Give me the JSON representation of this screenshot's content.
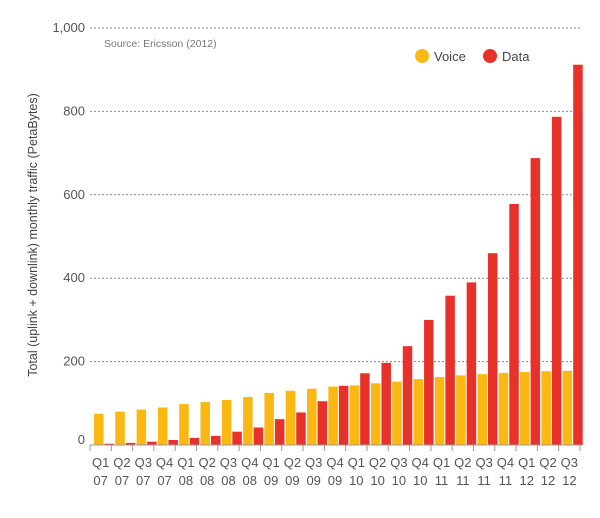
{
  "chart_data": {
    "type": "bar",
    "source": "Source: Ericsson (2012)",
    "ylabel": "Total (uplink + downlink) monthly traffic (PetaBytes)",
    "xlabel": "",
    "ylim": [
      0,
      1000
    ],
    "yticks": [
      "0",
      "200",
      "400",
      "600",
      "800",
      "1,000"
    ],
    "ytick_values": [
      0,
      200,
      400,
      600,
      800,
      1000
    ],
    "grid": "horizontal-dashed",
    "legend_position": "top-right",
    "categories": [
      [
        "Q1",
        "07"
      ],
      [
        "Q2",
        "07"
      ],
      [
        "Q3",
        "07"
      ],
      [
        "Q4",
        "07"
      ],
      [
        "Q1",
        "08"
      ],
      [
        "Q2",
        "08"
      ],
      [
        "Q3",
        "08"
      ],
      [
        "Q4",
        "08"
      ],
      [
        "Q1",
        "09"
      ],
      [
        "Q2",
        "09"
      ],
      [
        "Q3",
        "09"
      ],
      [
        "Q4",
        "09"
      ],
      [
        "Q1",
        "10"
      ],
      [
        "Q2",
        "10"
      ],
      [
        "Q3",
        "10"
      ],
      [
        "Q4",
        "10"
      ],
      [
        "Q1",
        "11"
      ],
      [
        "Q2",
        "11"
      ],
      [
        "Q3",
        "11"
      ],
      [
        "Q4",
        "11"
      ],
      [
        "Q1",
        "12"
      ],
      [
        "Q2",
        "12"
      ],
      [
        "Q3",
        "12"
      ]
    ],
    "series": [
      {
        "name": "Voice",
        "color": "#fbb813",
        "values": [
          75,
          80,
          85,
          90,
          98,
          103,
          108,
          115,
          125,
          130,
          135,
          140,
          143,
          148,
          152,
          158,
          163,
          167,
          170,
          173,
          175,
          177,
          178
        ]
      },
      {
        "name": "Data",
        "color": "#e8312a",
        "values": [
          3,
          5,
          8,
          12,
          17,
          22,
          32,
          42,
          62,
          78,
          105,
          142,
          172,
          197,
          237,
          300,
          358,
          390,
          460,
          578,
          688,
          787,
          912
        ]
      }
    ]
  }
}
